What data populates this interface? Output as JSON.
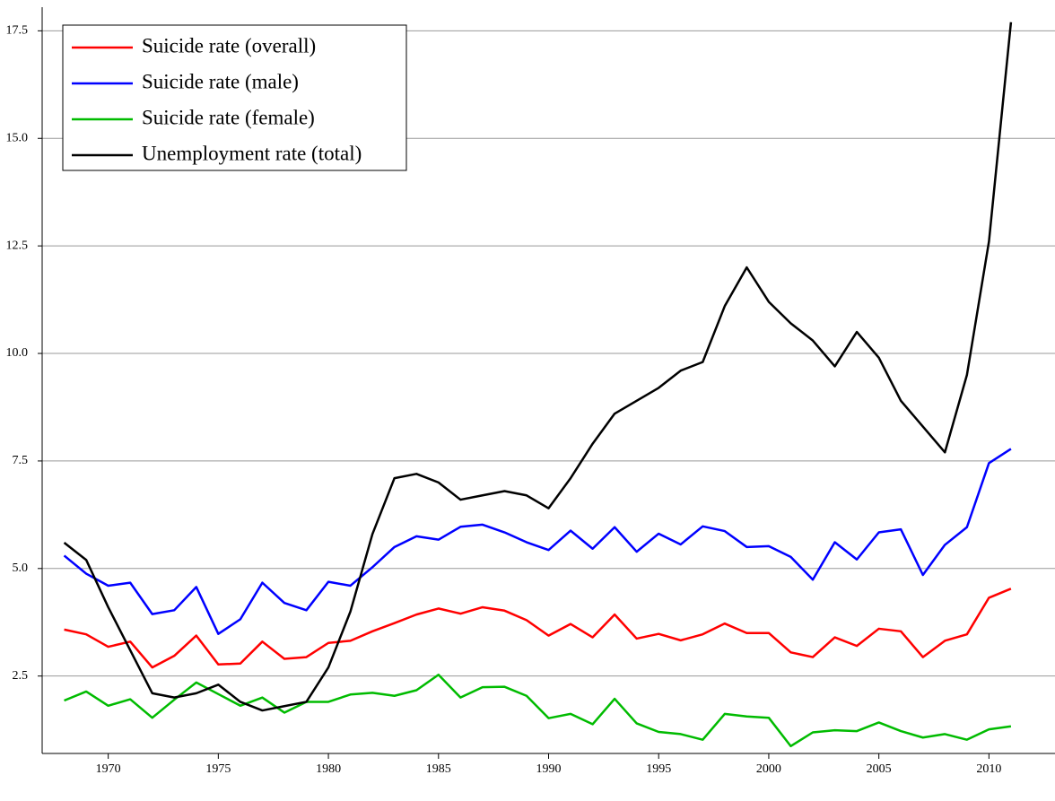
{
  "chart_data": {
    "type": "line",
    "x": [
      1968,
      1969,
      1970,
      1971,
      1972,
      1973,
      1974,
      1975,
      1976,
      1977,
      1978,
      1979,
      1980,
      1981,
      1982,
      1983,
      1984,
      1985,
      1986,
      1987,
      1988,
      1989,
      1990,
      1991,
      1992,
      1993,
      1994,
      1995,
      1996,
      1997,
      1998,
      1999,
      2000,
      2001,
      2002,
      2003,
      2004,
      2005,
      2006,
      2007,
      2008,
      2009,
      2010,
      2011
    ],
    "series": [
      {
        "name": "Suicide rate (overall)",
        "color": "#ff0000",
        "values": [
          3.58,
          3.47,
          3.18,
          3.3,
          2.7,
          2.97,
          3.44,
          2.77,
          2.79,
          3.3,
          2.9,
          2.94,
          3.27,
          3.32,
          3.54,
          3.73,
          3.93,
          4.07,
          3.95,
          4.1,
          4.02,
          3.8,
          3.44,
          3.71,
          3.4,
          3.93,
          3.37,
          3.48,
          3.33,
          3.47,
          3.72,
          3.5,
          3.5,
          3.05,
          2.94,
          3.4,
          3.2,
          3.6,
          3.54,
          2.94,
          3.32,
          3.47,
          4.32,
          4.53
        ]
      },
      {
        "name": "Suicide rate (male)",
        "color": "#0000ff",
        "values": [
          5.3,
          4.88,
          4.6,
          4.67,
          3.94,
          4.03,
          4.57,
          3.48,
          3.82,
          4.67,
          4.2,
          4.03,
          4.69,
          4.6,
          5.03,
          5.5,
          5.75,
          5.67,
          5.97,
          6.02,
          5.84,
          5.61,
          5.43,
          5.88,
          5.46,
          5.96,
          5.39,
          5.81,
          5.56,
          5.98,
          5.87,
          5.5,
          5.52,
          5.27,
          4.74,
          5.61,
          5.21,
          5.84,
          5.91,
          4.85,
          5.55,
          5.96,
          7.45,
          7.78
        ]
      },
      {
        "name": "Suicide rate (female)",
        "color": "#00bb00",
        "values": [
          1.93,
          2.14,
          1.81,
          1.96,
          1.53,
          1.95,
          2.35,
          2.08,
          1.81,
          2.0,
          1.65,
          1.9,
          1.9,
          2.07,
          2.11,
          2.04,
          2.17,
          2.53,
          2.0,
          2.24,
          2.25,
          2.04,
          1.52,
          1.62,
          1.38,
          1.97,
          1.4,
          1.2,
          1.15,
          1.02,
          1.62,
          1.56,
          1.53,
          0.87,
          1.19,
          1.24,
          1.22,
          1.42,
          1.22,
          1.07,
          1.15,
          1.02,
          1.26,
          1.33
        ]
      },
      {
        "name": "Unemployment rate (total)",
        "color": "#000000",
        "values": [
          5.6,
          5.2,
          4.1,
          3.1,
          2.1,
          2.0,
          2.1,
          2.3,
          1.9,
          1.7,
          1.8,
          1.9,
          2.7,
          4.0,
          5.8,
          7.1,
          7.2,
          7.0,
          6.6,
          6.7,
          6.8,
          6.7,
          6.4,
          7.1,
          7.9,
          8.6,
          8.9,
          9.2,
          9.6,
          9.8,
          11.1,
          12.0,
          11.2,
          10.7,
          10.3,
          9.7,
          10.5,
          9.9,
          8.9,
          8.3,
          7.7,
          9.5,
          12.6,
          17.7
        ]
      }
    ],
    "xlim": [
      1967,
      2013
    ],
    "xticks": [
      1970,
      1975,
      1980,
      1985,
      1990,
      1995,
      2000,
      2005,
      2010
    ],
    "ylim": [
      0.7,
      18.05
    ],
    "yticks": [
      2.5,
      {
        "value": 5,
        "label": "5.0"
      },
      7.5,
      {
        "value": 10,
        "label": "10.0"
      },
      12.5,
      {
        "value": 15,
        "label": "15.0"
      },
      17.5
    ],
    "grid": true,
    "legend": "upper left"
  }
}
